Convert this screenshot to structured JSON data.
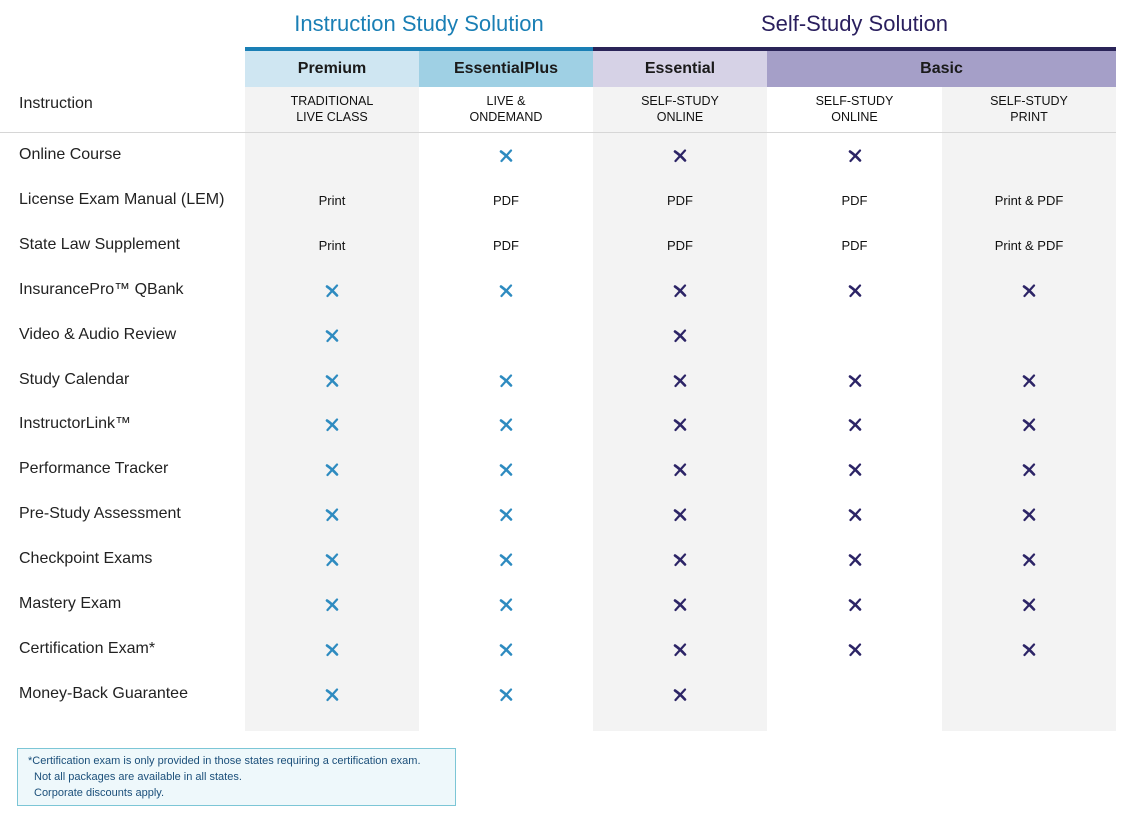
{
  "groups": {
    "instruction": "Instruction Study Solution",
    "self_study": "Self-Study Solution"
  },
  "first_column_header": "Instruction",
  "colors": {
    "instruction_accent": "#1a7fb5",
    "self_study_accent": "#2a1f5e",
    "check_instruction": "#2e8bc0",
    "check_self_study": "#2c2466"
  },
  "plans": [
    {
      "name": "Premium",
      "mode": [
        "TRADITIONAL",
        "LIVE CLASS"
      ],
      "head_color": "#cfe6f2",
      "bg": "#f3f3f3",
      "group": "instruction"
    },
    {
      "name": "EssentialPlus",
      "mode": [
        "LIVE &",
        "ONDEMAND"
      ],
      "head_color": "#9fd0e4",
      "bg": "#ffffff",
      "group": "instruction"
    },
    {
      "name": "Essential",
      "mode": [
        "SELF-STUDY",
        "ONLINE"
      ],
      "head_color": "#d6d2e6",
      "bg": "#f3f3f3",
      "group": "self_study"
    },
    {
      "name": "Basic",
      "mode": [
        "SELF-STUDY",
        "ONLINE"
      ],
      "head_color": "#a59fc8",
      "bg": "#ffffff",
      "group": "self_study"
    },
    {
      "name": "",
      "mode": [
        "SELF-STUDY",
        "PRINT"
      ],
      "head_color": "#a59fc8",
      "bg": "#f3f3f3",
      "group": "self_study"
    }
  ],
  "check_icon": "x-check-icon",
  "rows": [
    {
      "label": "Online Course",
      "cells": [
        "",
        "check",
        "check",
        "check",
        ""
      ]
    },
    {
      "label": "License Exam Manual (LEM)",
      "cells": [
        "Print",
        "PDF",
        "PDF",
        "PDF",
        "Print & PDF"
      ]
    },
    {
      "label": "State Law Supplement",
      "cells": [
        "Print",
        "PDF",
        "PDF",
        "PDF",
        "Print & PDF"
      ]
    },
    {
      "label": "InsurancePro™ QBank",
      "cells": [
        "check",
        "check",
        "check",
        "check",
        "check"
      ]
    },
    {
      "label": "Video & Audio Review",
      "cells": [
        "check",
        "",
        "check",
        "",
        ""
      ]
    },
    {
      "label": "Study Calendar",
      "cells": [
        "check",
        "check",
        "check",
        "check",
        "check"
      ]
    },
    {
      "label": "InstructorLink™",
      "cells": [
        "check",
        "check",
        "check",
        "check",
        "check"
      ]
    },
    {
      "label": "Performance Tracker",
      "cells": [
        "check",
        "check",
        "check",
        "check",
        "check"
      ]
    },
    {
      "label": "Pre-Study Assessment",
      "cells": [
        "check",
        "check",
        "check",
        "check",
        "check"
      ]
    },
    {
      "label": "Checkpoint Exams",
      "cells": [
        "check",
        "check",
        "check",
        "check",
        "check"
      ]
    },
    {
      "label": "Mastery Exam",
      "cells": [
        "check",
        "check",
        "check",
        "check",
        "check"
      ]
    },
    {
      "label": "Certification Exam*",
      "cells": [
        "check",
        "check",
        "check",
        "check",
        "check"
      ]
    },
    {
      "label": "Money-Back Guarantee",
      "cells": [
        "check",
        "check",
        "check",
        "",
        ""
      ]
    }
  ],
  "footnote": [
    "*Certification exam is only provided in those states requiring a certification exam.",
    "Not all packages are available in all states.",
    "Corporate discounts apply."
  ]
}
